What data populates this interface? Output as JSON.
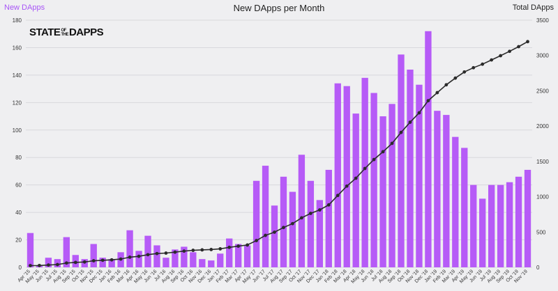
{
  "header": {
    "left_legend": "New DApps",
    "title": "New DApps per Month",
    "right_legend": "Total DApps"
  },
  "watermark": {
    "part1": "STATE",
    "part2a": "OF",
    "part2b": "THE",
    "part3": "DAPPS"
  },
  "colors": {
    "bar": "#b65bf7",
    "line": "#2b2b2b",
    "grid": "#d8d8dc",
    "background": "#efeff1"
  },
  "chart_data": {
    "type": "bar",
    "title": "New DApps per Month",
    "categories": [
      "Apr '15",
      "May '15",
      "Jun '15",
      "Jul '15",
      "Aug '15",
      "Sep '15",
      "Oct '15",
      "Nov '15",
      "Dec '15",
      "Jan '16",
      "Feb '16",
      "Mar '16",
      "Apr '16",
      "May '16",
      "Jun '16",
      "Jul '16",
      "Aug '16",
      "Sep '16",
      "Oct '16",
      "Nov '16",
      "Dec '16",
      "Jan '17",
      "Feb '17",
      "Mar '17",
      "Apr '17",
      "May '17",
      "Jun '17",
      "Jul '17",
      "Aug '17",
      "Sep '17",
      "Oct '17",
      "Nov '17",
      "Dec '17",
      "Jan '18",
      "Feb '18",
      "Mar '18",
      "Apr '18",
      "May '18",
      "Jun '18",
      "Jul '18",
      "Aug '18",
      "Sep '18",
      "Oct '18",
      "Nov '18",
      "Dec '18",
      "Jan '19",
      "Feb '19",
      "Mar '19",
      "Apr '19",
      "May '19",
      "Jun '19",
      "Jul '19",
      "Aug '19",
      "Sep '19",
      "Oct '19",
      "Nov '19"
    ],
    "x_tick_labels": [
      "Apr '15",
      "May '15",
      "Jun '15",
      "Jul '15",
      "Aug '15",
      "Sep '15",
      "Oct '15",
      "Nov '15",
      "Dec '15",
      "Jan '16",
      "Feb '16",
      "Mar '16",
      "Apr '16",
      "May '16",
      "Jun '16",
      "Jul '16",
      "Aug '16",
      "Sep '16",
      "Oct '16",
      "Nov '16",
      "Dec '16",
      "Jan '17",
      "Feb '17",
      "Mar '17",
      "Apr '17",
      "May '17",
      "Jun '17",
      "Jul '17",
      "Aug '17",
      "Sep '17",
      "Oct '17",
      "Nov '17",
      "Dec '17",
      "Jan '18",
      "Feb '18",
      "Mar '18",
      "Apr '18",
      "May '18",
      "Jun '18",
      "Jul '18",
      "Aug '18",
      "Sep '18",
      "Oct '18",
      "Nov '18",
      "Dec '18",
      "Jan '19",
      "Feb '19",
      "Mar '19",
      "Apr '19",
      "May '19",
      "Jun '19",
      "Jul '19",
      "Aug '19",
      "Sep '19",
      "Oct '19",
      "Nov '19"
    ],
    "series": [
      {
        "name": "New DApps",
        "type": "bar",
        "axis": "left",
        "values": [
          25,
          1,
          7,
          6,
          22,
          9,
          6,
          17,
          7,
          6,
          11,
          27,
          12,
          23,
          16,
          7,
          13,
          15,
          11,
          6,
          5,
          10,
          21,
          17,
          16,
          63,
          74,
          45,
          66,
          55,
          82,
          63,
          49,
          71,
          134,
          132,
          112,
          138,
          127,
          110,
          119,
          155,
          144,
          133,
          172,
          114,
          111,
          95,
          87,
          60,
          50,
          60,
          60,
          62,
          66,
          71
        ]
      },
      {
        "name": "Total DApps",
        "type": "line",
        "axis": "right",
        "values": [
          25,
          26,
          33,
          39,
          61,
          70,
          76,
          93,
          100,
          106,
          117,
          144,
          156,
          179,
          195,
          202,
          215,
          230,
          241,
          247,
          252,
          262,
          283,
          300,
          316,
          379,
          453,
          498,
          564,
          619,
          701,
          764,
          813,
          884,
          1018,
          1150,
          1262,
          1400,
          1527,
          1637,
          1756,
          1911,
          2055,
          2188,
          2360,
          2474,
          2585,
          2680,
          2767,
          2827,
          2877,
          2937,
          2997,
          3059,
          3125,
          3196
        ]
      }
    ],
    "ylim_left": [
      0,
      180
    ],
    "ylim_right": [
      0,
      3500
    ],
    "y_ticks_left": [
      0,
      20,
      40,
      60,
      80,
      100,
      120,
      140,
      160,
      180
    ],
    "y_ticks_right": [
      0,
      500,
      1000,
      1500,
      2000,
      2500,
      3000,
      3500
    ],
    "grid": true
  }
}
